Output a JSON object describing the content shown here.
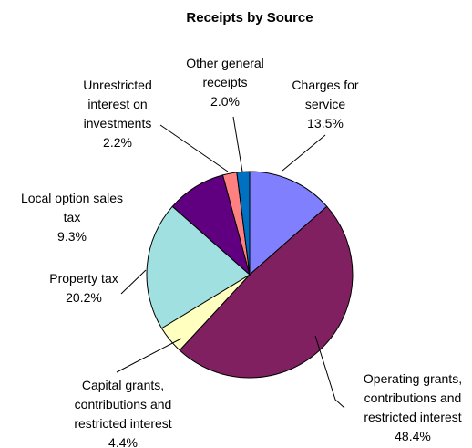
{
  "chart_data": {
    "type": "pie",
    "title": "Receipts by Source",
    "slices": [
      {
        "label_lines": [
          "Charges for",
          "service"
        ],
        "value_label": "13.5%",
        "value": 13.5,
        "color": "#8080FF"
      },
      {
        "label_lines": [
          "Operating grants,",
          "contributions and",
          "restricted interest"
        ],
        "value_label": "48.4%",
        "value": 48.4,
        "color": "#802060"
      },
      {
        "label_lines": [
          "Capital grants,",
          "contributions and",
          "restricted interest"
        ],
        "value_label": "4.4%",
        "value": 4.4,
        "color": "#FFFFC0"
      },
      {
        "label_lines": [
          "Property tax"
        ],
        "value_label": "20.2%",
        "value": 20.2,
        "color": "#A0E0E0"
      },
      {
        "label_lines": [
          "Local option sales",
          "tax"
        ],
        "value_label": "9.3%",
        "value": 9.3,
        "color": "#600080"
      },
      {
        "label_lines": [
          "Unrestricted",
          "interest on",
          "investments"
        ],
        "value_label": "2.2%",
        "value": 2.2,
        "color": "#FF8080"
      },
      {
        "label_lines": [
          "Other general",
          "receipts"
        ],
        "value_label": "2.0%",
        "value": 2.0,
        "color": "#0070C0"
      }
    ]
  }
}
